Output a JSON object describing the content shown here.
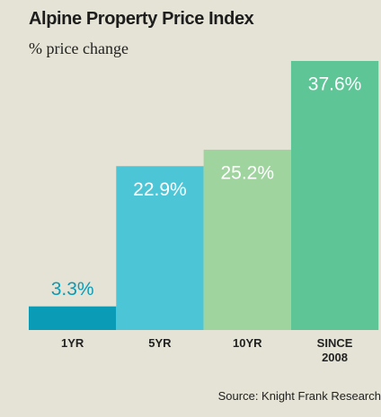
{
  "chart_data": {
    "type": "bar",
    "title": "Alpine Property Price Index",
    "subtitle": "% price change",
    "categories": [
      "1YR",
      "5YR",
      "10YR",
      "SINCE 2008"
    ],
    "values": [
      3.3,
      22.9,
      25.2,
      37.6
    ],
    "value_labels": [
      "3.3%",
      "22.9%",
      "25.2%",
      "37.6%"
    ],
    "colors": [
      "#0a9bb6",
      "#4cc5d7",
      "#a0d49f",
      "#5ec596"
    ],
    "source": "Source: Knight Frank Research"
  }
}
